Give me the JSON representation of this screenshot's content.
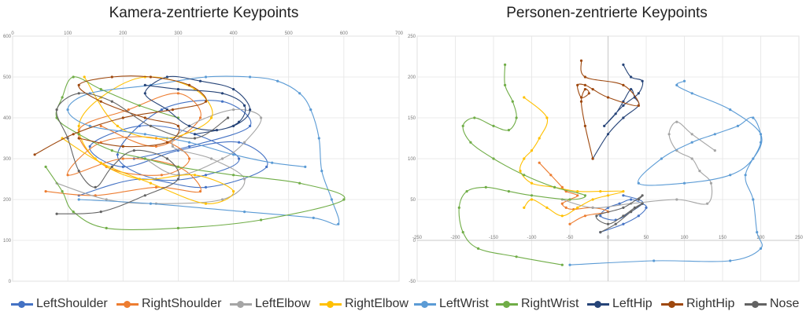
{
  "series_styles": [
    {
      "name": "LeftShoulder",
      "color": "#4472c4"
    },
    {
      "name": "RightShoulder",
      "color": "#ed7d31"
    },
    {
      "name": "LeftElbow",
      "color": "#a5a5a5"
    },
    {
      "name": "RightElbow",
      "color": "#ffc000"
    },
    {
      "name": "LeftWrist",
      "color": "#5b9bd5"
    },
    {
      "name": "RightWrist",
      "color": "#70ad47"
    },
    {
      "name": "LeftHip",
      "color": "#264478"
    },
    {
      "name": "RightHip",
      "color": "#9e480e"
    },
    {
      "name": "Nose",
      "color": "#636363"
    }
  ],
  "chart_data": [
    {
      "type": "scatter",
      "title": "Kamera-zentrierte Keypoints",
      "xlabel": "",
      "ylabel": "",
      "xlim": [
        0,
        700
      ],
      "ylim": [
        600,
        0
      ],
      "x_ticks": [
        0,
        100,
        200,
        300,
        400,
        500,
        600,
        700
      ],
      "y_ticks": [
        0,
        100,
        200,
        300,
        400,
        500,
        600
      ],
      "grid": true,
      "legend": "bottom",
      "series": [
        {
          "name": "LeftShoulder",
          "x": [
            120,
            230,
            350,
            460,
            410,
            300,
            200,
            140,
            230,
            330,
            410,
            350,
            260,
            190,
            270,
            380,
            430,
            320,
            220
          ],
          "y": [
            210,
            250,
            230,
            280,
            340,
            320,
            280,
            330,
            380,
            360,
            300,
            260,
            250,
            310,
            420,
            440,
            380,
            330,
            300
          ]
        },
        {
          "name": "RightShoulder",
          "x": [
            60,
            150,
            260,
            340,
            300,
            200,
            100,
            160,
            260,
            320,
            270,
            170,
            120,
            210,
            300,
            340,
            260,
            160
          ],
          "y": [
            220,
            210,
            230,
            220,
            280,
            300,
            260,
            340,
            350,
            300,
            260,
            280,
            370,
            420,
            460,
            400,
            330,
            380
          ]
        },
        {
          "name": "LeftElbow",
          "x": [
            80,
            170,
            260,
            380,
            420,
            360,
            290,
            320,
            400,
            450,
            420,
            380,
            300,
            240
          ],
          "y": [
            240,
            200,
            190,
            200,
            250,
            300,
            330,
            380,
            420,
            400,
            340,
            300,
            260,
            300
          ]
        },
        {
          "name": "RightElbow",
          "x": [
            90,
            160,
            250,
            350,
            400,
            330,
            230,
            150,
            120,
            160,
            240,
            330,
            360,
            280,
            190,
            130
          ],
          "y": [
            350,
            290,
            240,
            190,
            220,
            260,
            250,
            300,
            380,
            450,
            500,
            470,
            400,
            350,
            380,
            500
          ]
        },
        {
          "name": "LeftWrist",
          "x": [
            120,
            250,
            420,
            545,
            590,
            578,
            560,
            555,
            540,
            520,
            480,
            430,
            350,
            250,
            140,
            100,
            140,
            240,
            320,
            400,
            470,
            530
          ],
          "y": [
            200,
            190,
            170,
            155,
            140,
            200,
            270,
            350,
            420,
            460,
            490,
            500,
            500,
            480,
            460,
            420,
            380,
            360,
            340,
            310,
            290,
            280
          ]
        },
        {
          "name": "RightWrist",
          "x": [
            60,
            90,
            110,
            170,
            300,
            450,
            600,
            520,
            400,
            300,
            240,
            180,
            120,
            80,
            90,
            110,
            160,
            230,
            300
          ],
          "y": [
            280,
            220,
            170,
            130,
            130,
            150,
            200,
            240,
            260,
            280,
            300,
            320,
            360,
            400,
            450,
            500,
            470,
            430,
            400
          ]
        },
        {
          "name": "LeftHip",
          "x": [
            240,
            300,
            380,
            420,
            410,
            370,
            320,
            280,
            240,
            280,
            340,
            400,
            430,
            400,
            330
          ],
          "y": [
            480,
            470,
            460,
            430,
            390,
            370,
            380,
            420,
            460,
            500,
            490,
            470,
            420,
            380,
            360
          ]
        },
        {
          "name": "RightHip",
          "x": [
            40,
            110,
            200,
            290,
            350,
            320,
            250,
            180,
            120,
            160,
            240,
            300,
            280,
            200,
            120
          ],
          "y": [
            310,
            360,
            400,
            420,
            440,
            480,
            500,
            500,
            480,
            440,
            400,
            380,
            340,
            330,
            350
          ]
        },
        {
          "name": "Nose",
          "x": [
            80,
            160,
            240,
            300,
            280,
            220,
            180,
            150,
            120,
            100,
            80,
            120,
            180,
            250,
            330,
            390
          ],
          "y": [
            165,
            170,
            210,
            250,
            300,
            320,
            280,
            230,
            270,
            350,
            420,
            460,
            440,
            380,
            350,
            400
          ]
        }
      ]
    },
    {
      "type": "scatter",
      "title": "Personen-zentrierte Keypoints",
      "xlabel": "",
      "ylabel": "",
      "xlim": [
        -250,
        250
      ],
      "ylim": [
        250,
        -50
      ],
      "x_ticks": [
        -250,
        -200,
        -150,
        -100,
        -50,
        0,
        50,
        100,
        150,
        200,
        250
      ],
      "y_ticks": [
        -50,
        0,
        50,
        100,
        150,
        200,
        250
      ],
      "grid": true,
      "legend": "bottom",
      "series": [
        {
          "name": "LeftShoulder",
          "x": [
            -10,
            20,
            40,
            50,
            45,
            30,
            15,
            0,
            -10,
            10,
            30,
            45,
            40,
            20
          ],
          "y": [
            10,
            20,
            30,
            40,
            45,
            50,
            45,
            40,
            30,
            25,
            35,
            45,
            50,
            55
          ]
        },
        {
          "name": "RightShoulder",
          "x": [
            -50,
            -30,
            0,
            -20,
            -45,
            -55,
            -60,
            -50,
            -40,
            -55,
            -60,
            -75,
            -90
          ],
          "y": [
            20,
            30,
            35,
            40,
            38,
            40,
            45,
            50,
            55,
            60,
            65,
            80,
            95
          ]
        },
        {
          "name": "LeftElbow",
          "x": [
            -60,
            -20,
            30,
            90,
            130,
            135,
            120,
            110,
            90,
            80,
            90,
            110,
            140
          ],
          "y": [
            50,
            40,
            45,
            50,
            45,
            70,
            85,
            100,
            110,
            130,
            145,
            130,
            110
          ]
        },
        {
          "name": "RightElbow",
          "x": [
            -110,
            -100,
            -80,
            -60,
            -40,
            -20,
            0,
            20,
            -10,
            -40,
            -70,
            -100,
            -115,
            -110,
            -100,
            -90,
            -80,
            -110
          ],
          "y": [
            40,
            50,
            40,
            30,
            40,
            50,
            55,
            60,
            60,
            60,
            65,
            70,
            85,
            100,
            110,
            125,
            150,
            175
          ]
        },
        {
          "name": "LeftWrist",
          "x": [
            -50,
            60,
            160,
            200,
            195,
            190,
            180,
            200,
            190,
            170,
            140,
            110,
            70,
            40,
            100,
            160,
            190,
            200,
            160,
            110,
            90,
            100
          ],
          "y": [
            -30,
            -25,
            -25,
            -10,
            10,
            50,
            80,
            120,
            150,
            140,
            130,
            120,
            100,
            70,
            70,
            80,
            100,
            130,
            160,
            180,
            190,
            195
          ]
        },
        {
          "name": "RightWrist",
          "x": [
            -60,
            -120,
            -170,
            -190,
            -195,
            -185,
            -160,
            -130,
            -100,
            -50,
            -30,
            -70,
            -110,
            -150,
            -180,
            -190,
            -175,
            -150,
            -130,
            -120,
            -125,
            -135,
            -135
          ],
          "y": [
            -30,
            -20,
            -10,
            10,
            40,
            60,
            65,
            60,
            55,
            50,
            55,
            65,
            80,
            100,
            120,
            140,
            150,
            140,
            135,
            150,
            170,
            190,
            215
          ]
        },
        {
          "name": "LeftHip",
          "x": [
            -20,
            0,
            20,
            40,
            35,
            30,
            20,
            10,
            -5,
            20,
            40,
            45,
            30,
            20
          ],
          "y": [
            100,
            130,
            150,
            165,
            175,
            185,
            170,
            155,
            140,
            165,
            180,
            195,
            200,
            215
          ]
        },
        {
          "name": "RightHip",
          "x": [
            -20,
            -30,
            -35,
            -30,
            -25,
            -35,
            -40,
            -30,
            -20,
            0,
            40,
            20,
            -30,
            -35
          ],
          "y": [
            100,
            140,
            170,
            185,
            180,
            175,
            190,
            190,
            185,
            175,
            165,
            190,
            200,
            220
          ]
        },
        {
          "name": "Nose",
          "x": [
            -10,
            10,
            30,
            45,
            35,
            20,
            0,
            -15,
            20,
            45,
            40
          ],
          "y": [
            10,
            20,
            35,
            45,
            40,
            30,
            20,
            30,
            40,
            55,
            50
          ]
        }
      ]
    }
  ]
}
